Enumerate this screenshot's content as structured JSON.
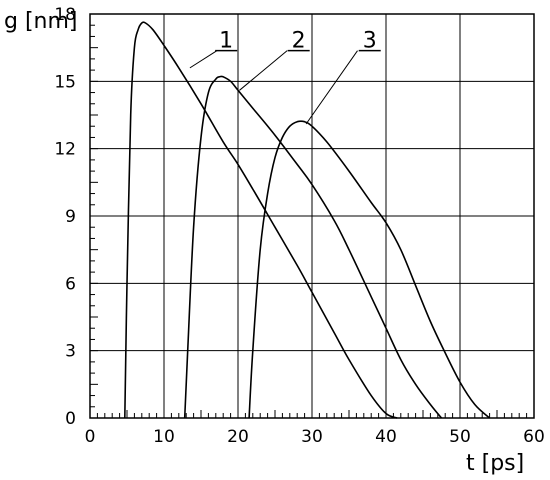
{
  "chart_data": {
    "type": "line",
    "title": "",
    "xlabel": "t [ps]",
    "ylabel": "g [nm]",
    "xlim": [
      0,
      60
    ],
    "ylim": [
      0,
      18
    ],
    "x_ticks": [
      0,
      10,
      20,
      30,
      40,
      50,
      60
    ],
    "y_ticks": [
      0,
      3,
      6,
      9,
      12,
      15,
      18
    ],
    "grid": true,
    "series": [
      {
        "name": "1",
        "x": [
          4.7,
          5.0,
          5.5,
          6.0,
          6.5,
          7.0,
          7.5,
          8.5,
          10,
          12,
          15,
          18,
          20,
          22,
          25,
          28,
          30,
          33,
          35,
          38,
          40,
          41.5
        ],
        "y": [
          0,
          6,
          13.5,
          16.5,
          17.3,
          17.6,
          17.6,
          17.3,
          16.6,
          15.6,
          14.0,
          12.3,
          11.3,
          10.2,
          8.5,
          6.8,
          5.6,
          3.8,
          2.6,
          1.0,
          0.2,
          0
        ]
      },
      {
        "name": "2",
        "x": [
          12.8,
          13.2,
          14,
          15,
          16,
          17,
          17.5,
          18,
          19,
          20,
          22,
          25,
          28,
          30,
          33,
          35,
          38,
          40,
          42,
          44,
          46,
          47.5
        ],
        "y": [
          0,
          3,
          8.5,
          12.5,
          14.5,
          15.1,
          15.2,
          15.2,
          15.0,
          14.6,
          13.8,
          12.6,
          11.3,
          10.4,
          8.8,
          7.5,
          5.4,
          4.0,
          2.6,
          1.5,
          0.6,
          0
        ]
      },
      {
        "name": "3",
        "x": [
          21.5,
          22,
          23,
          24,
          25,
          26,
          27,
          28,
          29,
          30,
          32,
          35,
          38,
          40,
          42,
          44,
          46,
          48,
          50,
          52,
          54
        ],
        "y": [
          0,
          3,
          7.5,
          10.0,
          11.6,
          12.5,
          13.0,
          13.2,
          13.2,
          13.0,
          12.3,
          11.0,
          9.6,
          8.7,
          7.5,
          5.9,
          4.3,
          2.9,
          1.6,
          0.6,
          0
        ]
      }
    ],
    "curve_labels": [
      {
        "text": "1",
        "x": 18.4,
        "y": 16.5,
        "pointer": [
          [
            18.5,
            15.8
          ],
          [
            13.5,
            15.6
          ]
        ]
      },
      {
        "text": "2",
        "x": 28.2,
        "y": 16.5,
        "pointer": [
          [
            28.0,
            15.8
          ],
          [
            20.2,
            14.6
          ]
        ]
      },
      {
        "text": "3",
        "x": 37.8,
        "y": 16.5,
        "pointer": [
          [
            37.5,
            15.8
          ],
          [
            29.2,
            13.1
          ]
        ]
      }
    ]
  }
}
